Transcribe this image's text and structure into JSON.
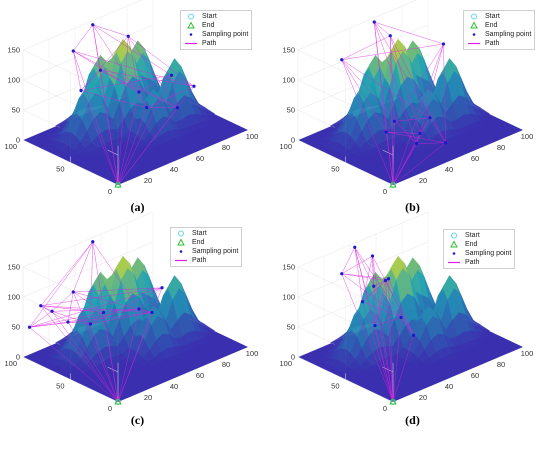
{
  "chart_data": [
    {
      "panel": "(a)",
      "type": "surface3d-path",
      "title": "",
      "zlim": [
        0,
        150
      ],
      "z_ticks": [
        "0",
        "50",
        "100",
        "150"
      ],
      "x_ticks": [
        "20",
        "40",
        "60",
        "80",
        "100"
      ],
      "y_ticks": [
        "0",
        "50",
        "100"
      ],
      "legend": [
        "Start",
        "End",
        "Sampling point",
        "Path"
      ],
      "start": {
        "x": 0,
        "y": 0,
        "z": 0
      },
      "sampling_points": [
        {
          "x": 35,
          "y": 95,
          "z": 120
        },
        {
          "x": 50,
          "y": 95,
          "z": 150
        },
        {
          "x": 70,
          "y": 85,
          "z": 120
        },
        {
          "x": 95,
          "y": 50,
          "z": 40
        },
        {
          "x": 45,
          "y": 80,
          "z": 90
        },
        {
          "x": 60,
          "y": 60,
          "z": 55
        },
        {
          "x": 55,
          "y": 45,
          "z": 45
        },
        {
          "x": 75,
          "y": 40,
          "z": 30
        },
        {
          "x": 85,
          "y": 60,
          "z": 60
        },
        {
          "x": 30,
          "y": 80,
          "z": 70
        }
      ]
    },
    {
      "panel": "(b)",
      "type": "surface3d-path",
      "title": "",
      "zlim": [
        0,
        150
      ],
      "z_ticks": [
        "0",
        "50",
        "100",
        "150"
      ],
      "x_ticks": [
        "20",
        "40",
        "60",
        "80",
        "100"
      ],
      "y_ticks": [
        "0",
        "50",
        "100"
      ],
      "legend": [
        "Start",
        "End",
        "Sampling point",
        "Path"
      ],
      "start": {
        "x": 0,
        "y": 0,
        "z": 0
      },
      "sampling_points": [
        {
          "x": 55,
          "y": 95,
          "z": 150
        },
        {
          "x": 60,
          "y": 85,
          "z": 130
        },
        {
          "x": 30,
          "y": 95,
          "z": 110
        },
        {
          "x": 90,
          "y": 70,
          "z": 100
        },
        {
          "x": 50,
          "y": 40,
          "z": 10
        },
        {
          "x": 40,
          "y": 30,
          "z": 10
        },
        {
          "x": 55,
          "y": 20,
          "z": 5
        },
        {
          "x": 35,
          "y": 55,
          "z": 15
        },
        {
          "x": 45,
          "y": 60,
          "z": 20
        },
        {
          "x": 65,
          "y": 50,
          "z": 15
        }
      ]
    },
    {
      "panel": "(c)",
      "type": "surface3d-path",
      "title": "",
      "zlim": [
        0,
        150
      ],
      "z_ticks": [
        "0",
        "50",
        "100",
        "150"
      ],
      "x_ticks": [
        "20",
        "40",
        "60",
        "80",
        "100"
      ],
      "y_ticks": [
        "0",
        "50",
        "100"
      ],
      "legend": [
        "Start",
        "End",
        "Sampling point",
        "Path"
      ],
      "start": {
        "x": 0,
        "y": 0,
        "z": 0
      },
      "sampling_points": [
        {
          "x": 50,
          "y": 95,
          "z": 150
        },
        {
          "x": 10,
          "y": 95,
          "z": 80
        },
        {
          "x": 15,
          "y": 90,
          "z": 70
        },
        {
          "x": 5,
          "y": 100,
          "z": 45
        },
        {
          "x": 20,
          "y": 80,
          "z": 55
        },
        {
          "x": 30,
          "y": 70,
          "z": 50
        },
        {
          "x": 40,
          "y": 70,
          "z": 60
        },
        {
          "x": 60,
          "y": 60,
          "z": 55
        },
        {
          "x": 85,
          "y": 70,
          "z": 60
        },
        {
          "x": 35,
          "y": 95,
          "z": 80
        },
        {
          "x": 70,
          "y": 60,
          "z": 40
        }
      ]
    },
    {
      "panel": "(d)",
      "type": "surface3d-path",
      "title": "",
      "zlim": [
        0,
        150
      ],
      "z_ticks": [
        "0",
        "50",
        "100",
        "150"
      ],
      "x_ticks": [
        "20",
        "40",
        "60",
        "80",
        "100"
      ],
      "y_ticks": [
        "0",
        "50",
        "100"
      ],
      "legend": [
        "Start",
        "End",
        "Sampling point",
        "Path"
      ],
      "start": {
        "x": 0,
        "y": 0,
        "z": 0
      },
      "sampling_points": [
        {
          "x": 40,
          "y": 95,
          "z": 150
        },
        {
          "x": 30,
          "y": 95,
          "z": 115
        },
        {
          "x": 50,
          "y": 90,
          "z": 130
        },
        {
          "x": 40,
          "y": 75,
          "z": 100
        },
        {
          "x": 55,
          "y": 80,
          "z": 95
        },
        {
          "x": 35,
          "y": 80,
          "z": 75
        },
        {
          "x": 60,
          "y": 90,
          "z": 80
        },
        {
          "x": 30,
          "y": 60,
          "z": 55
        },
        {
          "x": 50,
          "y": 60,
          "z": 50
        },
        {
          "x": 45,
          "y": 40,
          "z": 40
        }
      ]
    }
  ],
  "legend": {
    "start_label": "Start",
    "end_label": "End",
    "sampling_label": "Sampling point",
    "path_label": "Path"
  },
  "captions": [
    "(a)",
    "(b)",
    "(c)",
    "(d)"
  ],
  "colors": {
    "path": "#e01ee0",
    "sampling": "#1a1acc",
    "start": "#5fd6e8",
    "end": "#2fbf2f",
    "floor": "#3a2fae",
    "surface_low": "#3b2fb0",
    "surface_mid": "#1fa2b6",
    "surface_high": "#f2e21a"
  }
}
